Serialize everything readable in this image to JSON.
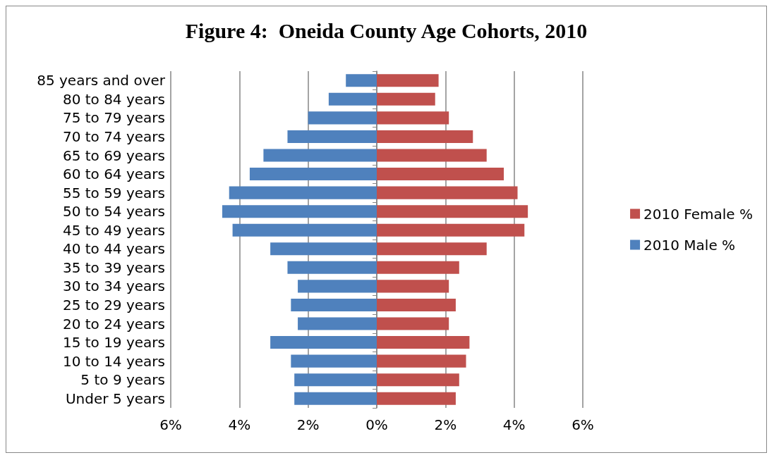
{
  "chart_data": {
    "type": "bar",
    "orientation": "horizontal",
    "stacked": true,
    "title": "Figure 4:  Oneida County Age Cohorts, 2010",
    "categories": [
      "85 years and over",
      "80 to 84 years",
      "75 to 79 years",
      "70 to 74 years",
      "65 to 69 years",
      "60 to 64 years",
      "55 to 59 years",
      "50 to 54 years",
      "45 to 49 years",
      "40 to 44 years",
      "35 to 39 years",
      "30 to 34 years",
      "25 to 29 years",
      "20 to 24 years",
      "15 to 19 years",
      "10 to 14 years",
      "5 to 9 years",
      "Under 5 years"
    ],
    "series": [
      {
        "name": "2010 Female %",
        "color": "#c0504d",
        "values": [
          1.8,
          1.7,
          2.1,
          2.8,
          3.2,
          3.7,
          4.1,
          4.4,
          4.3,
          3.2,
          2.4,
          2.1,
          2.3,
          2.1,
          2.7,
          2.6,
          2.4,
          2.3
        ]
      },
      {
        "name": "2010 Male %",
        "color": "#4f81bd",
        "values": [
          -0.9,
          -1.4,
          -2.0,
          -2.6,
          -3.3,
          -3.7,
          -4.3,
          -4.5,
          -4.2,
          -3.1,
          -2.6,
          -2.3,
          -2.5,
          -2.3,
          -3.1,
          -2.5,
          -2.4,
          -2.4
        ]
      }
    ],
    "xlim": [
      -6,
      6
    ],
    "xticks": [
      {
        "value": -6,
        "label": "6%"
      },
      {
        "value": -4,
        "label": "4%"
      },
      {
        "value": -2,
        "label": "2%"
      },
      {
        "value": 0,
        "label": "0%"
      },
      {
        "value": 2,
        "label": "2%"
      },
      {
        "value": 4,
        "label": "4%"
      },
      {
        "value": 6,
        "label": "6%"
      }
    ],
    "grid": "x",
    "legend": "right"
  }
}
